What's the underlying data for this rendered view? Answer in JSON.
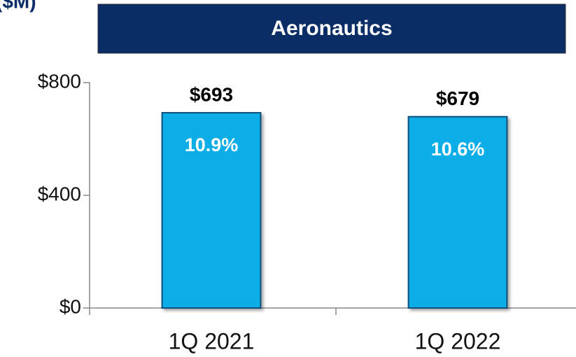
{
  "chart_data": {
    "type": "bar",
    "unit_label": "($M)",
    "title": "Aeronautics",
    "categories": [
      "1Q 2021",
      "1Q 2022"
    ],
    "values": [
      693,
      679
    ],
    "value_labels": [
      "$693",
      "$679"
    ],
    "annotations": [
      "10.9%",
      "10.6%"
    ],
    "color": "#0aaee8",
    "ylim": [
      0,
      800
    ],
    "yticks": [
      {
        "value": 0,
        "label": "$0"
      },
      {
        "value": 400,
        "label": "$400"
      },
      {
        "value": 800,
        "label": "$800"
      }
    ]
  }
}
